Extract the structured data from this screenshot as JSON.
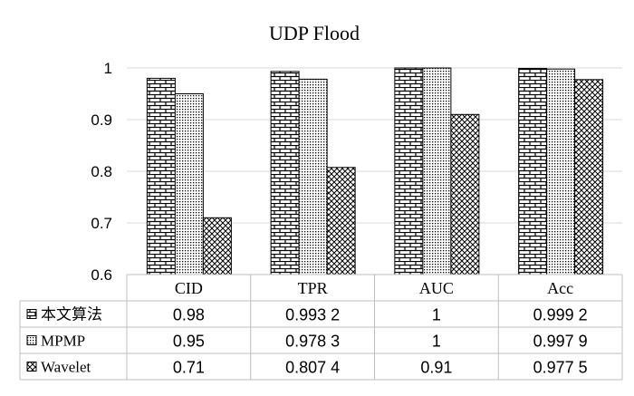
{
  "chart_data": {
    "type": "bar",
    "title": "UDP Flood",
    "xlabel": "",
    "ylabel": "",
    "ylim": [
      0.6,
      1.0
    ],
    "yticks": [
      "0.6",
      "0.7",
      "0.8",
      "0.9",
      "1"
    ],
    "grid": true,
    "categories": [
      "CID",
      "TPR",
      "AUC",
      "Acc"
    ],
    "series": [
      {
        "name": "本文算法",
        "pattern": "brick",
        "values": [
          0.98,
          0.9932,
          1,
          0.9992
        ],
        "labels": [
          "0.98",
          "0.993 2",
          "1",
          "0.999 2"
        ]
      },
      {
        "name": "MPMP",
        "pattern": "dots",
        "values": [
          0.95,
          0.9783,
          1,
          0.9979
        ],
        "labels": [
          "0.95",
          "0.978 3",
          "1",
          "0.997 9"
        ]
      },
      {
        "name": "Wavelet",
        "pattern": "crosshatch",
        "values": [
          0.71,
          0.8074,
          0.91,
          0.9775
        ],
        "labels": [
          "0.71",
          "0.807 4",
          "0.91",
          "0.977 5"
        ]
      }
    ],
    "legend": "data-table-left",
    "colors": {
      "stroke": "#000000",
      "grid": "#d9d9d9",
      "table_border": "#bfbfbf"
    }
  }
}
